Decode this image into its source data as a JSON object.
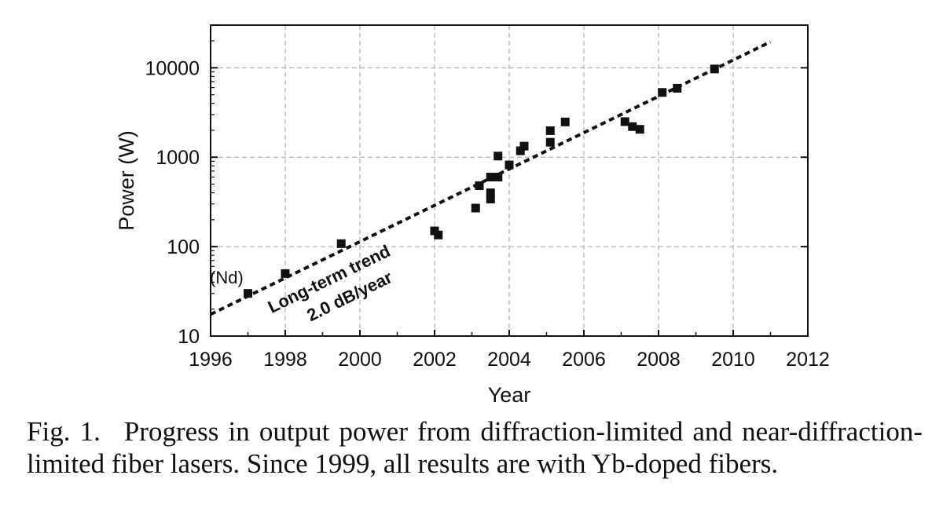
{
  "chart_data": {
    "type": "scatter",
    "xlabel": "Year",
    "ylabel": "Power  (W)",
    "x_ticks": [
      1996,
      1998,
      2000,
      2002,
      2004,
      2006,
      2008,
      2010,
      2012
    ],
    "y_ticks": [
      10,
      100,
      1000,
      10000
    ],
    "y_tick_labels": [
      "10",
      "100",
      "1000",
      "10000"
    ],
    "xlim": [
      1996,
      2012
    ],
    "ylim": [
      10,
      30000
    ],
    "y_scale": "log",
    "grid": true,
    "series": [
      {
        "points": [
          [
            1997.0,
            30
          ],
          [
            1998.0,
            50
          ],
          [
            1999.5,
            108
          ],
          [
            2002.0,
            150
          ],
          [
            2002.1,
            135
          ],
          [
            2003.1,
            270
          ],
          [
            2003.2,
            480
          ],
          [
            2003.5,
            600
          ],
          [
            2003.5,
            400
          ],
          [
            2003.5,
            340
          ],
          [
            2003.7,
            600
          ],
          [
            2003.7,
            1030
          ],
          [
            2004.0,
            820
          ],
          [
            2004.3,
            1180
          ],
          [
            2004.4,
            1330
          ],
          [
            2005.1,
            1980
          ],
          [
            2005.1,
            1470
          ],
          [
            2005.5,
            2480
          ],
          [
            2007.1,
            2500
          ],
          [
            2007.3,
            2200
          ],
          [
            2007.5,
            2050
          ],
          [
            2008.1,
            5300
          ],
          [
            2008.5,
            5900
          ],
          [
            2009.5,
            9700
          ]
        ]
      }
    ],
    "trend_line": {
      "style": "dashed",
      "points": [
        [
          1996.0,
          17.5
        ],
        [
          2011.0,
          19500
        ]
      ]
    },
    "annotations": {
      "nd_label": "(Nd)",
      "trend_line1": "Long-term trend",
      "trend_line2": "2.0 dB/year"
    }
  },
  "caption": {
    "label": "Fig. 1.",
    "text": "Progress in output power from diffraction-limited and near-diffraction-limited fiber lasers. Since 1999, all results are with Yb-doped fibers."
  },
  "colors": {
    "marker": "#111111",
    "grid": "#b5b5b5",
    "axis": "#111111"
  }
}
